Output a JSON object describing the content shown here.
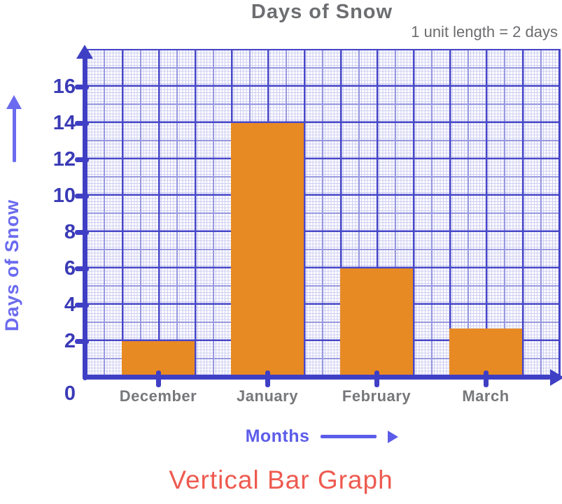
{
  "title": "Days of Snow",
  "scale_note": "1 unit length = 2 days",
  "caption": "Vertical Bar Graph",
  "y_axis": {
    "label": "Days of Snow",
    "ticks": [
      0,
      2,
      4,
      6,
      8,
      10,
      12,
      14,
      16
    ]
  },
  "x_axis": {
    "label": "Months"
  },
  "chart_data": {
    "type": "bar",
    "title": "Days of Snow",
    "categories": [
      "December",
      "January",
      "February",
      "March"
    ],
    "values": [
      2,
      14,
      6,
      2.7
    ],
    "xlabel": "Months",
    "ylabel": "Days of Snow",
    "ylim": [
      0,
      18
    ],
    "y_tick_step": 2,
    "unit_note": "1 unit length = 2 days",
    "bar_color": "#e88a24",
    "grid": "graph-paper",
    "legend": false
  },
  "colors": {
    "bar": "#e88a24",
    "axis": "#3f3fc5",
    "grid_heavy": "#4747c9",
    "grid_medium": "#9898e0",
    "grid_fine": "#ccccf2",
    "tick_text": "#3a3ab6",
    "title_text": "#6d6e71",
    "month_text": "#77787b",
    "months_label": "#5c5cea",
    "ylabel_text": "#6b6bf0",
    "caption_text": "#ee5a50"
  }
}
